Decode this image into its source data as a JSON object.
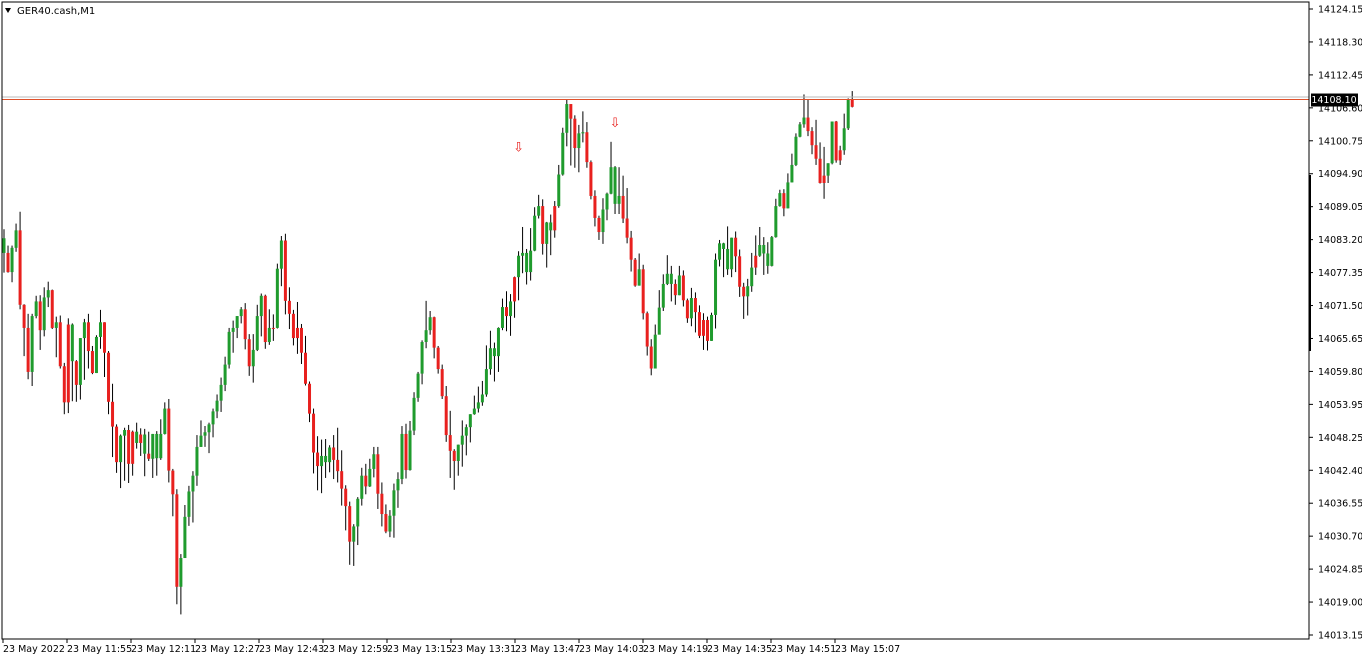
{
  "chart_data": {
    "type": "candlestick",
    "symbol_label": "GER40.cash,M1",
    "price_label": "14108.10",
    "price_line_value": 14108.1,
    "ask_line_value": 14108.9,
    "y_ticks": [
      "14124.15",
      "14118.30",
      "14112.45",
      "14106.60",
      "14100.75",
      "14094.90",
      "14089.05",
      "14083.20",
      "14077.35",
      "14071.50",
      "14065.65",
      "14059.80",
      "14053.95",
      "14048.25",
      "14042.40",
      "14036.55",
      "14030.70",
      "14024.85",
      "14019.00",
      "14013.15"
    ],
    "ylim": [
      14013.15,
      14124.15
    ],
    "x_ticks": [
      "23 May 2022",
      "23 May 11:55",
      "23 May 12:11",
      "23 May 12:27",
      "23 May 12:43",
      "23 May 12:59",
      "23 May 13:15",
      "23 May 13:31",
      "23 May 13:47",
      "23 May 14:03",
      "23 May 14:19",
      "23 May 14:35",
      "23 May 14:51",
      "23 May 15:07"
    ],
    "colors": {
      "bull": "#1f9b2d",
      "bear": "#e8201e",
      "price_line": "#e0502a",
      "ask_line": "#b8b8b8",
      "arrow": "#e8201e",
      "axis": "#000000"
    },
    "arrow_symbols": [
      "⇩",
      "⇩"
    ],
    "arrows": [
      {
        "bar": 128,
        "price": 14098.9
      },
      {
        "bar": 152,
        "price": 14103.2
      }
    ],
    "candles": "F14080.9,14083.5,14085.1,14077.4|R14080.9,14077.5,14082.2,14077.4|F14077.5,14081.8,14082.2,14075.7|F14081.8,14084.9,14086.1,14081.1|R14084.9,14071.7,14088.2,14070.9|R14071.7,14067.6,14071.8,14062.6|R14067.6,14059.8,14070.1,14058.5|F14059.8,14069.7,14070.1,14057.3|F14069.7,14072.3,14073.3,14069.3|R14072.3,14067.2,14073.4,14063.7|F14067.2,14073.0,14074.8,14066.1|F14073.0,14074.3,14075.8,14071.3|R14074.3,14067.6,14074.4,14067.4|F14067.6,14068.6,14069.6,14062.4|R14068.6,14060.8,14069.8,14060.4|R14060.8,14054.4,14061.4,14052.3|R14054.4,14068.2,14069.3,14052.5|F14068.2,14061.7,14068.4,14054.6|R14061.7,14057.5,14061.9,14054.5|F14057.5,14065.8,14065.8,14054.9|F14065.8,14068.6,14069.2,14058.4|R14068.6,14063.5,14070.1,14060.4|R14063.5,14059.6,14064.4,14059.4|F14059.6,14066.0,14066.3,14059.6|F14066.0,14068.6,14070.8,14063.9|R14068.6,14063.2,14068.6,14058.9|R14063.2,14054.5,14063.5,14052.3|R14054.5,14050.1,14057.7,14044.7|R14050.1,14043.8,14050.5,14041.9|F14043.8,14048.5,14048.7,14039.2|F14048.5,14049.5,14049.9,14040.5|R14049.5,14043.5,14050.4,14040.1|R14043.5,14049.2,14049.4,14041.4|F14049.2,14047.2,14050.8,14046.2|R14047.2,14048.7,14049.8,14044.9|F14048.7,14045.3,14049.7,14041.3|R14045.3,14044.4,14049.2,14044.0|F14044.4,14048.8,14048.8,14041.0|F14048.8,14044.5,14049.3,14041.4|F14044.5,14048.8,14051.4,14044.2|F14048.8,14053.3,14054.4,14048.7|R14053.3,14042.3,14055.0,14040.2|R14042.3,14038.1,14042.6,14034.2|R14038.1,14021.7,14039.0,14018.6|F14021.7,14026.8,14027.5,14016.8|F14026.8,14034.1,14036.2,14026.8|F14034.1,14038.6,14039.6,14032.5|F14038.6,14041.4,14042.2,14033.1|F14041.4,14046.5,14048.6,14039.6|F14046.5,14048.5,14051.2,14046.5|F14048.5,14049.1,14050.2,14046.5|F14049.1,14050.5,14050.8,14045.4|F14050.5,14052.8,14053.3,14048.2|F14052.8,14054.7,14055.8,14051.6|F14054.7,14057.5,14058.8,14052.7|F14057.5,14061.1,14062.5,14056.4|F14061.1,14066.9,14067.6,14060.4|F14066.9,14067.6,14068.9,14063.2|F14067.6,14069.7,14069.7,14065.8|F14069.7,14070.9,14071.3,14068.4|R14070.9,14065.6,14072.0,14063.8|R14065.6,14060.8,14066.5,14059.1|F14060.8,14063.7,14066.5,14057.9|F14063.7,14069.7,14071.7,14063.5|F14069.7,14073.3,14073.7,14066.1|R14073.3,14065.1,14073.5,14063.9|F14065.1,14067.6,14070.9,14064.6|R14067.6,14067.6,14070.0,14065.3|F14067.6,14078.1,14079.0,14067.5|F14078.1,14083.1,14083.9,14075.0|R14083.1,14072.4,14084.3,14070.0|R14072.4,14070.1,14074.8,14067.4|R14070.1,14065.8,14070.8,14064.5|R14065.8,14067.6,14072.2,14063.0|R14067.6,14063.2,14068.3,14061.2|R14063.2,14057.7,14066.2,14057.4|R14057.7,14052.4,14058.1,14050.9|R14052.4,14045.5,14053.3,14041.8|R14045.5,14043.1,14048.4,14038.8|F14043.1,14044.9,14047.8,14038.3|F14044.9,14043.8,14047.9,14041.0|F14043.8,14046.4,14046.8,14042.0|R14046.4,14044.2,14048.6,14040.8|R14044.2,14042.2,14049.9,14040.2|R14042.2,14039.1,14045.9,14036.1|R14039.1,14036.0,14039.7,14031.7|R14036.0,14029.7,14036.8,14025.6|F14029.7,14032.4,14032.8,14025.4|F14032.4,14037.3,14037.6,14029.1|F14037.3,14041.4,14042.8,14036.1|R14041.4,14039.5,14043.5,14038.1|F14039.5,14042.6,14044.4,14039.4|F14042.6,14045.2,14046.5,14041.1|R14045.2,14038.2,14046.5,14035.5|R14038.2,14034.6,14040.2,14032.4|R14034.6,14031.5,14036.3,14031.2|F14031.5,14034.3,14035.3,14030.5|F14034.3,14038.8,14040.0,14030.4|F14038.8,14040.8,14042.0,14035.7|F14040.8,14048.8,14050.2,14039.9|R14048.8,14042.4,14050.6,14040.9|F14042.4,14049.4,14051.1,14042.3|F14049.4,14055.2,14056.2,14048.6|F14055.2,14059.5,14059.8,14054.5|F14059.5,14065.1,14065.4,14057.6|F14065.1,14067.2,14072.4,14064.0|F14067.2,14069.5,14070.6,14066.4|R14069.5,14064.1,14069.6,14062.2|R14064.1,14060.3,14064.4,14059.5|R14060.3,14055.5,14061.1,14055.0|R14055.5,14048.6,14057.3,14047.4|R14048.6,14045.8,14052.9,14041.0|R14045.8,14044.0,14046.1,14038.9|F14044.0,14046.9,14046.9,14041.4|F14046.9,14048.5,14051.2,14043.0|F14048.5,14050.0,14050.5,14045.0|F14050.0,14052.3,14052.3,14047.3|F14052.3,14053.3,14055.6,14052.2|F14053.3,14054.4,14057.2,14052.6|F14054.4,14055.8,14058.2,14053.8|F14055.8,14060.3,14064.5,14055.4|F14060.3,14064.0,14067.1,14059.3|F14064.0,14062.6,14065.0,14058.1|F14062.6,14067.6,14067.7,14059.8|F14067.6,14071.3,14072.8,14067.2|R14071.3,14069.7,14074.1,14067.0|F14069.7,14072.3,14073.6,14066.2|R14072.3,14076.6,14076.7,14069.4|F14076.6,14080.4,14081.2,14072.5|F14080.4,14080.9,14085.5,14077.3|F14080.9,14077.5,14081.6,14075.3|F14077.5,14081.3,14085.3,14076.0|F14081.3,14087.5,14089.0,14081.2|F14087.5,14089.2,14091.2,14087.0|R14089.2,14082.5,14090.4,14080.6|F14082.5,14086.3,14086.4,14078.3|F14086.3,14084.9,14087.7,14080.5|R14084.9,14089.2,14090.1,14083.6|F14089.2,14094.8,14096.5,14088.9|F14094.8,14102.2,14103.1,14094.6|F14102.2,14107.3,14108.1,14099.8|R14107.3,14104.7,14106.7,14096.4|R14104.7,14099.5,14105.3,14096.0|F14099.5,14102.1,14103.6,14095.2|F14102.1,14102.3,14106.0,14100.5|R14102.3,14097.0,14104.1,14096.0|R14097.0,14091.0,14097.3,14090.4|R14091.0,14087.1,14092.0,14085.6|R14087.1,14084.6,14087.5,14083.2|F14084.6,14088.6,14090.6,14082.5|F14088.6,14091.4,14091.6,14086.7|F14091.4,14096.1,14100.6,14091.3|F14096.1,14089.6,14096.3,14087.8|F14089.6,14091.0,14096.1,14087.8|R14091.0,14087.0,14094.6,14086.2|R14087.0,14083.6,14092.4,14082.6|R14083.6,14079.7,14084.8,14077.6|R14079.7,14075.1,14080.0,14074.9|F14075.1,14078.0,14080.8,14075.1|R14078.0,14070.2,14078.8,14069.1|R14070.2,14064.3,14070.5,14062.7|R14064.3,14060.4,14065.6,14059.2|F14060.4,14066.4,14068.2,14062.4|F14066.4,14071.2,14074.3,14068.9|F14071.2,14075.4,14077.1,14070.6|F14075.4,14077.2,14080.5,14075.2|F14077.2,14075.4,14078.6,14072.3|R14075.4,14073.4,14076.2,14071.7|F14073.4,14076.9,14078.6,14073.4|R14076.9,14072.5,14077.8,14071.4|R14072.5,14069.3,14072.8,14068.5|F14069.3,14072.9,14074.7,14067.9|R14072.9,14070.4,14073.9,14066.8|R14070.4,14066.2,14071.6,14065.8|R14066.2,14069.0,14070.2,14063.7|R14069.0,14065.3,14069.6,14063.6|F14065.3,14069.9,14070.3,14065.3|F14069.9,14079.7,14080.8,14067.5|F14079.7,14082.6,14083.2,14078.5|F14082.6,14081.6,14082.7,14076.6|F14081.6,14078.0,14085.6,14077.0|F14078.0,14083.6,14083.6,14076.6|R14083.6,14080.3,14084.7,14077.5|R14080.3,14074.9,14081.5,14073.1|R14074.9,14073.2,14075.6,14069.2|F14073.2,14075.0,14076.3,14069.8|F14075.0,14078.3,14080.9,14074.0|R14078.3,14080.4,14084.0,14077.0|F14080.4,14082.3,14085.5,14080.2|F14082.3,14080.8,14083.7,14077.0|F14080.8,14078.6,14082.8,14077.2|F14078.6,14083.7,14083.9,14078.5|F14083.7,14089.2,14090.5,14083.6|F14089.2,14091.5,14092.1,14089.1|R14091.5,14088.8,14092.2,14087.4|F14088.8,14093.4,14095.0,14088.8|F14093.4,14096.5,14098.5,14093.4|F14096.5,14101.5,14102.1,14096.3|F14101.5,14103.7,14104.1,14101.4|F14103.7,14104.9,14109.0,14103.1|R14104.9,14102.5,14108.1,14101.6|R14102.5,14100.0,14103.2,14098.4|R14100.0,14097.6,14104.5,14096.5|R14097.6,14093.3,14100.5,14093.2|R14093.3,14094.6,14099.7,14090.5|F14094.6,14096.8,14096.8,14093.3|F14096.8,14104.2,14104.2,14096.6|R14104.2,14097.3,14104.3,14096.9|R14097.3,14099.1,14099.9,14096.5|F14099.1,14103.0,14105.6,14098.3|F14103.0,14108.1,14108.3,14102.7|R14108.1,14106.8,14109.6,14106.7",
    "candles_encoding": "one entry per bar separated by |; leading letter is the bar colour (R red, F green), followed by open,close,high,low in price units"
  }
}
